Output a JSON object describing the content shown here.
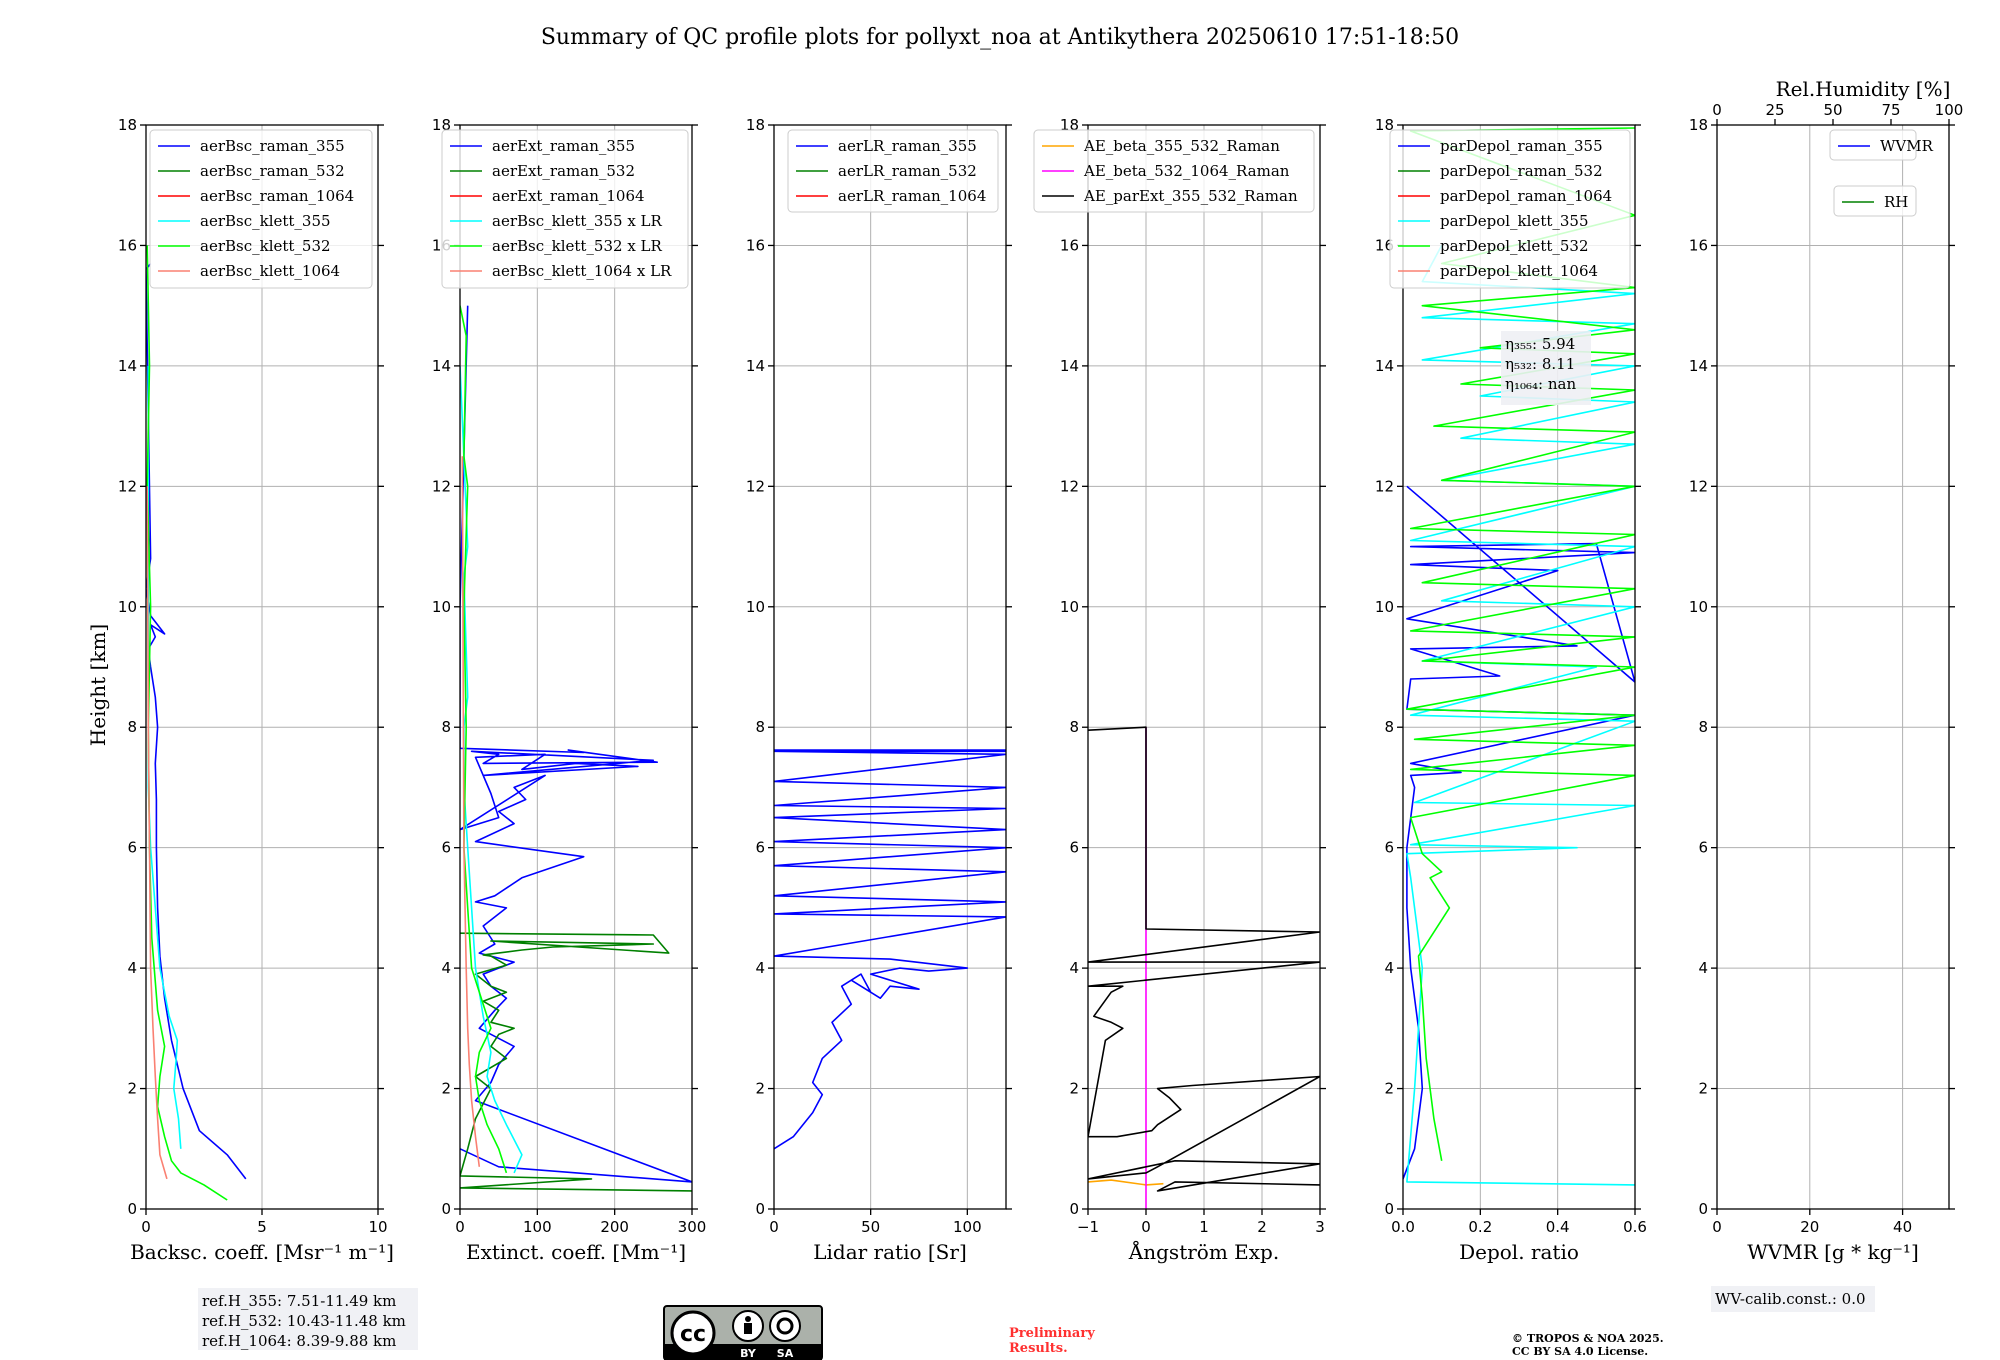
{
  "title": "Summary of QC profile plots for pollyxt_noa at Antikythera 20250610 17:51-18:50",
  "colors": {
    "blue": "#0000ff",
    "green": "#008000",
    "red": "#ff0000",
    "cyan": "#00ffff",
    "lime": "#00ff00",
    "salmon": "#fa8072",
    "orange": "#ffa500",
    "magenta": "#ff00ff",
    "black": "#000000"
  },
  "y_axis": {
    "label": "Height [km]",
    "range": [
      0,
      18
    ],
    "ticks": [
      "0",
      "2",
      "4",
      "6",
      "8",
      "10",
      "12",
      "14",
      "16",
      "18"
    ]
  },
  "chart_data": [
    {
      "type": "line",
      "id": "backscatter",
      "xlabel": "Backsc. coeff. [Msr⁻¹ m⁻¹]",
      "xlim": [
        0,
        10
      ],
      "xticks": [
        0,
        5,
        10
      ],
      "xtick_labels": [
        "0",
        "5",
        "10"
      ],
      "legend_position": "top-right",
      "series": [
        {
          "name": "aerBsc_raman_355",
          "color": "blue",
          "x": [
            4.3,
            3.5,
            2.3,
            1.6,
            1.1,
            0.8,
            0.6,
            0.5,
            0.45,
            0.45,
            0.4,
            0.5,
            0.4,
            0.2,
            0.1,
            0.4,
            0.2,
            0.8,
            0.2,
            0,
            0.2,
            0,
            0.2
          ],
          "y": [
            0.5,
            0.9,
            1.3,
            2.0,
            2.8,
            3.5,
            4.2,
            5.0,
            6.0,
            6.8,
            7.4,
            8.0,
            8.5,
            9.0,
            9.3,
            9.5,
            9.7,
            9.55,
            9.85,
            10.3,
            10.8,
            15.6,
            15.7
          ]
        },
        {
          "name": "aerBsc_raman_532",
          "color": "green",
          "x": [],
          "y": []
        },
        {
          "name": "aerBsc_raman_1064",
          "color": "red",
          "x": [],
          "y": []
        },
        {
          "name": "aerBsc_klett_355",
          "color": "cyan",
          "x": [
            1.5,
            1.4,
            1.2,
            1.3,
            1.35,
            1.0,
            0.6,
            0.4,
            0.2,
            0.1,
            0.1,
            0.1,
            0.1
          ],
          "y": [
            1.0,
            1.5,
            2.0,
            2.5,
            2.8,
            3.2,
            4.0,
            5.0,
            6.0,
            7.0,
            8.5,
            11.0,
            14.0
          ]
        },
        {
          "name": "aerBsc_klett_532",
          "color": "lime",
          "x": [
            3.5,
            2.5,
            1.5,
            1.1,
            0.8,
            0.5,
            0.6,
            0.8,
            0.5,
            0.25,
            0.15,
            0.1,
            0.2,
            0.05,
            0.15,
            0.05
          ],
          "y": [
            0.15,
            0.4,
            0.6,
            0.8,
            1.2,
            1.7,
            2.2,
            2.7,
            3.3,
            4.5,
            6.0,
            8.0,
            10.0,
            12.0,
            14.0,
            16.0
          ]
        },
        {
          "name": "aerBsc_klett_1064",
          "color": "salmon",
          "x": [
            0.9,
            0.6,
            0.5,
            0.4,
            0.3,
            0.2,
            0.15,
            0.1,
            0.05
          ],
          "y": [
            0.5,
            0.9,
            1.5,
            2.2,
            3.0,
            4.0,
            6.0,
            8.0,
            12.0
          ]
        }
      ],
      "annotation": {
        "lines": [
          "ref.H_355: 7.51-11.49 km",
          "ref.H_532: 10.43-11.48 km",
          "ref.H_1064: 8.39-9.88 km"
        ]
      }
    },
    {
      "type": "line",
      "id": "extinction",
      "xlabel": "Extinct. coeff. [Mm⁻¹]",
      "xlim": [
        0,
        300
      ],
      "xticks": [
        0,
        100,
        200,
        300
      ],
      "xtick_labels": [
        "0",
        "100",
        "200",
        "300"
      ],
      "legend_position": "top-right",
      "series": [
        {
          "name": "aerExt_raman_355",
          "color": "blue",
          "x": [
            0,
            50,
            300,
            20,
            40,
            50,
            70,
            25,
            45,
            60,
            40,
            30,
            50,
            70,
            25,
            45,
            30,
            60,
            20,
            45,
            80,
            160,
            20,
            70,
            50,
            85,
            70,
            110,
            0,
            50,
            40,
            20,
            110,
            80,
            150,
            230,
            30,
            250,
            15,
            50,
            30,
            255,
            140,
            160,
            0,
            0,
            10
          ],
          "y": [
            1.0,
            0.7,
            0.45,
            1.8,
            2.1,
            2.4,
            2.7,
            3.0,
            3.3,
            3.5,
            3.7,
            3.9,
            4.0,
            4.1,
            4.25,
            4.4,
            4.7,
            5.0,
            5.1,
            5.2,
            5.5,
            5.85,
            6.1,
            6.4,
            6.6,
            6.8,
            7.0,
            7.2,
            6.3,
            6.5,
            6.9,
            7.5,
            7.55,
            7.3,
            7.4,
            7.35,
            7.2,
            7.45,
            7.6,
            7.55,
            7.4,
            7.42,
            7.62,
            7.58,
            7.65,
            10.0,
            15.0
          ]
        },
        {
          "name": "aerExt_raman_532",
          "color": "green",
          "x": [
            300,
            0,
            170,
            0,
            10,
            20,
            40,
            20,
            60,
            40,
            50,
            70,
            40,
            50,
            30,
            60,
            40,
            20,
            60,
            40,
            30,
            80,
            120,
            200,
            250,
            40,
            270,
            250,
            0
          ],
          "y": [
            0.3,
            0.35,
            0.5,
            0.55,
            1.0,
            1.5,
            2.0,
            2.2,
            2.5,
            2.7,
            2.9,
            3.0,
            3.1,
            3.3,
            3.45,
            3.6,
            3.7,
            3.9,
            4.05,
            4.2,
            4.22,
            4.3,
            4.35,
            4.38,
            4.4,
            4.45,
            4.25,
            4.55,
            4.58
          ]
        },
        {
          "name": "aerExt_raman_1064",
          "color": "red",
          "x": [],
          "y": []
        },
        {
          "name": "aerBsc_klett_355 x LR",
          "color": "cyan",
          "x": [
            70,
            80,
            60,
            45,
            35,
            40,
            30,
            20,
            15,
            10,
            5,
            5,
            10,
            5,
            10,
            0
          ],
          "y": [
            0.6,
            0.9,
            1.4,
            1.8,
            2.2,
            2.6,
            3.2,
            4.0,
            5.0,
            6.0,
            7.0,
            8.0,
            8.5,
            10.5,
            11.0,
            14.0
          ]
        },
        {
          "name": "aerBsc_klett_532 x LR",
          "color": "lime",
          "x": [
            60,
            50,
            35,
            25,
            20,
            25,
            40,
            30,
            15,
            10,
            5,
            8,
            5,
            10,
            5,
            8,
            0
          ],
          "y": [
            0.6,
            1.0,
            1.4,
            1.8,
            2.2,
            2.6,
            3.0,
            3.4,
            4.0,
            5.0,
            6.0,
            8.0,
            10.0,
            12.0,
            12.5,
            14.5,
            15.0
          ]
        },
        {
          "name": "aerBsc_klett_1064 x LR",
          "color": "salmon",
          "x": [
            25,
            20,
            15,
            12,
            10,
            8,
            5,
            3
          ],
          "y": [
            0.7,
            1.2,
            1.8,
            2.4,
            3.0,
            4.0,
            6.0,
            12.5
          ]
        }
      ]
    },
    {
      "type": "line",
      "id": "lidar-ratio",
      "xlabel": "Lidar ratio [Sr]",
      "xlim": [
        0,
        120
      ],
      "xticks": [
        0,
        50,
        100
      ],
      "xtick_labels": [
        "0",
        "50",
        "100"
      ],
      "legend_position": "top-right",
      "series": [
        {
          "name": "aerLR_raman_355",
          "color": "blue",
          "x": [
            0,
            10,
            20,
            25,
            20,
            25,
            35,
            30,
            40,
            35,
            45,
            50,
            40,
            55,
            60,
            75,
            50,
            65,
            80,
            100,
            60,
            0,
            120,
            0,
            120,
            0,
            120,
            0,
            120,
            0,
            120,
            0,
            120,
            0,
            120,
            0,
            120,
            0,
            120,
            0,
            120
          ],
          "y": [
            1.0,
            1.2,
            1.6,
            1.9,
            2.1,
            2.5,
            2.8,
            3.1,
            3.4,
            3.7,
            3.9,
            3.6,
            3.8,
            3.5,
            3.7,
            3.65,
            3.9,
            4.0,
            3.95,
            4.0,
            4.15,
            4.2,
            4.85,
            4.9,
            5.1,
            5.2,
            5.6,
            5.7,
            6.0,
            6.1,
            6.3,
            6.5,
            6.65,
            6.7,
            7.0,
            7.1,
            7.55,
            7.6,
            7.6,
            7.62,
            7.62
          ]
        },
        {
          "name": "aerLR_raman_532",
          "color": "green",
          "x": [],
          "y": []
        },
        {
          "name": "aerLR_raman_1064",
          "color": "red",
          "x": [],
          "y": []
        }
      ]
    },
    {
      "type": "line",
      "id": "angstrom",
      "xlabel": "Ångström Exp.",
      "xlim": [
        -1,
        3
      ],
      "xticks": [
        -1,
        0,
        1,
        2,
        3
      ],
      "xtick_labels": [
        "−1",
        "0",
        "1",
        "2",
        "3"
      ],
      "legend_position": "top-right",
      "series": [
        {
          "name": "AE_beta_355_532_Raman",
          "color": "orange",
          "x": [
            -1,
            -0.6,
            0,
            0.3
          ],
          "y": [
            0.45,
            0.48,
            0.4,
            0.42
          ]
        },
        {
          "name": "AE_beta_532_1064_Raman",
          "color": "magenta",
          "x": [
            0,
            0
          ],
          "y": [
            0,
            8.0
          ]
        },
        {
          "name": "AE_parExt_355_532_Raman",
          "color": "black",
          "x": [
            3,
            0.5,
            0.2,
            3,
            0.5,
            -1,
            0,
            0.2,
            3,
            0.8,
            0.2,
            0.4,
            0.6,
            0.2,
            0.1,
            -0.5,
            -1,
            -0.7,
            -0.4,
            -0.6,
            -0.9,
            -0.6,
            -0.4,
            -1,
            3,
            -1,
            3,
            0,
            0,
            -1
          ],
          "y": [
            0.4,
            0.45,
            0.3,
            0.75,
            0.8,
            0.5,
            0.6,
            0.7,
            2.2,
            2.05,
            2.0,
            1.85,
            1.65,
            1.4,
            1.3,
            1.2,
            1.2,
            2.8,
            3.0,
            3.1,
            3.2,
            3.6,
            3.7,
            3.7,
            4.1,
            4.1,
            4.6,
            4.65,
            8.0,
            7.95
          ]
        }
      ]
    },
    {
      "type": "line",
      "id": "depolarization",
      "xlabel": "Depol. ratio",
      "xlim": [
        0,
        0.6
      ],
      "xticks": [
        0,
        0.2,
        0.4,
        0.6
      ],
      "xtick_labels": [
        "0.0",
        "0.2",
        "0.4",
        "0.6"
      ],
      "legend_position": "top-right",
      "series": [
        {
          "name": "parDepol_raman_355",
          "color": "blue",
          "x": [
            0.0,
            0.03,
            0.05,
            0.04,
            0.02,
            0.01,
            0.01,
            0.03,
            0.02,
            0.15,
            0.02,
            0.6,
            0.01,
            0.02,
            0.25,
            0.02,
            0.45,
            0.01,
            0.4,
            0.02,
            0.6,
            0.02,
            0.5,
            0.6,
            0.01
          ],
          "y": [
            0.5,
            1.0,
            2.0,
            3.0,
            4.0,
            5.0,
            6.0,
            7.0,
            7.2,
            7.25,
            7.4,
            8.2,
            8.3,
            8.8,
            8.85,
            9.3,
            9.35,
            9.8,
            10.6,
            10.7,
            10.9,
            11.0,
            11.05,
            8.75,
            12.0
          ]
        },
        {
          "name": "parDepol_raman_532",
          "color": "green",
          "x": [],
          "y": []
        },
        {
          "name": "parDepol_raman_1064",
          "color": "red",
          "x": [],
          "y": []
        },
        {
          "name": "parDepol_klett_355",
          "color": "cyan",
          "x": [
            0.6,
            0.01,
            0.03,
            0.05,
            0.02,
            0.01,
            0.45,
            0.02,
            0.6,
            0.03,
            0.6,
            0.02,
            0.5,
            0.05,
            0.6,
            0.1,
            0.6,
            0.02,
            0.6,
            0.1,
            0.6,
            0.15,
            0.6,
            0.2,
            0.6,
            0.05,
            0.6,
            0.05,
            0.6,
            0.05,
            0.1
          ],
          "y": [
            0.4,
            0.45,
            2.0,
            4.0,
            5.5,
            5.9,
            6.0,
            6.05,
            6.7,
            6.75,
            8.1,
            8.2,
            9.0,
            9.1,
            10.0,
            10.1,
            11.0,
            11.1,
            12.0,
            12.1,
            12.7,
            12.8,
            13.4,
            13.5,
            14.0,
            14.1,
            14.7,
            14.8,
            15.2,
            15.4,
            16.0
          ]
        },
        {
          "name": "parDepol_klett_532",
          "color": "lime",
          "x": [
            0.1,
            0.08,
            0.06,
            0.05,
            0.04,
            0.1,
            0.12,
            0.07,
            0.1,
            0.05,
            0.02,
            0.6,
            0.02,
            0.6,
            0.03,
            0.6,
            0.01,
            0.6,
            0.05,
            0.6,
            0.02,
            0.6,
            0.05,
            0.6,
            0.02,
            0.6,
            0.1,
            0.6,
            0.08,
            0.6,
            0.15,
            0.6,
            0.2,
            0.6,
            0.05,
            0.6,
            0.1,
            0.6,
            0.02,
            0.6
          ],
          "y": [
            0.8,
            1.5,
            2.5,
            3.5,
            4.2,
            4.8,
            5.0,
            5.5,
            5.6,
            5.9,
            6.5,
            7.2,
            7.3,
            7.7,
            7.8,
            8.2,
            8.3,
            9.0,
            9.1,
            9.5,
            9.6,
            10.3,
            10.4,
            11.2,
            11.3,
            12.0,
            12.1,
            12.9,
            13.0,
            13.6,
            13.7,
            14.2,
            14.3,
            14.6,
            15.0,
            15.3,
            15.7,
            16.5,
            17.9,
            17.95
          ]
        },
        {
          "name": "parDepol_klett_1064",
          "color": "salmon",
          "x": [],
          "y": []
        }
      ],
      "annotation": {
        "lines": [
          "η₃₅₅: 5.94",
          "η₅₃₂: 8.11",
          "η₁₀₆₄: nan"
        ]
      }
    },
    {
      "type": "line",
      "id": "wvmr",
      "xlabel": "WVMR [g * kg⁻¹]",
      "xlim": [
        0,
        50
      ],
      "xticks": [
        0,
        20,
        40
      ],
      "xtick_labels": [
        "0",
        "20",
        "40"
      ],
      "top_xlabel": "Rel.Humidity [%]",
      "top_xlim": [
        0,
        100
      ],
      "top_xticks": [
        0,
        25,
        50,
        75,
        100
      ],
      "top_xtick_labels": [
        "0",
        "25",
        "50",
        "75",
        "100"
      ],
      "series": [
        {
          "name": "WVMR",
          "color": "blue",
          "x": [],
          "y": []
        },
        {
          "name": "RH",
          "color": "green",
          "x": [],
          "y": []
        }
      ],
      "annotation": {
        "lines": [
          "WV-calib.const.: 0.0"
        ]
      }
    }
  ],
  "footer": {
    "preliminary": [
      "Preliminary",
      "Results."
    ],
    "copyright": [
      "© TROPOS & NOA 2025.",
      "CC BY SA 4.0 License."
    ],
    "cc_badge": {
      "main": "cc",
      "by": "BY",
      "sa": "SA"
    }
  }
}
